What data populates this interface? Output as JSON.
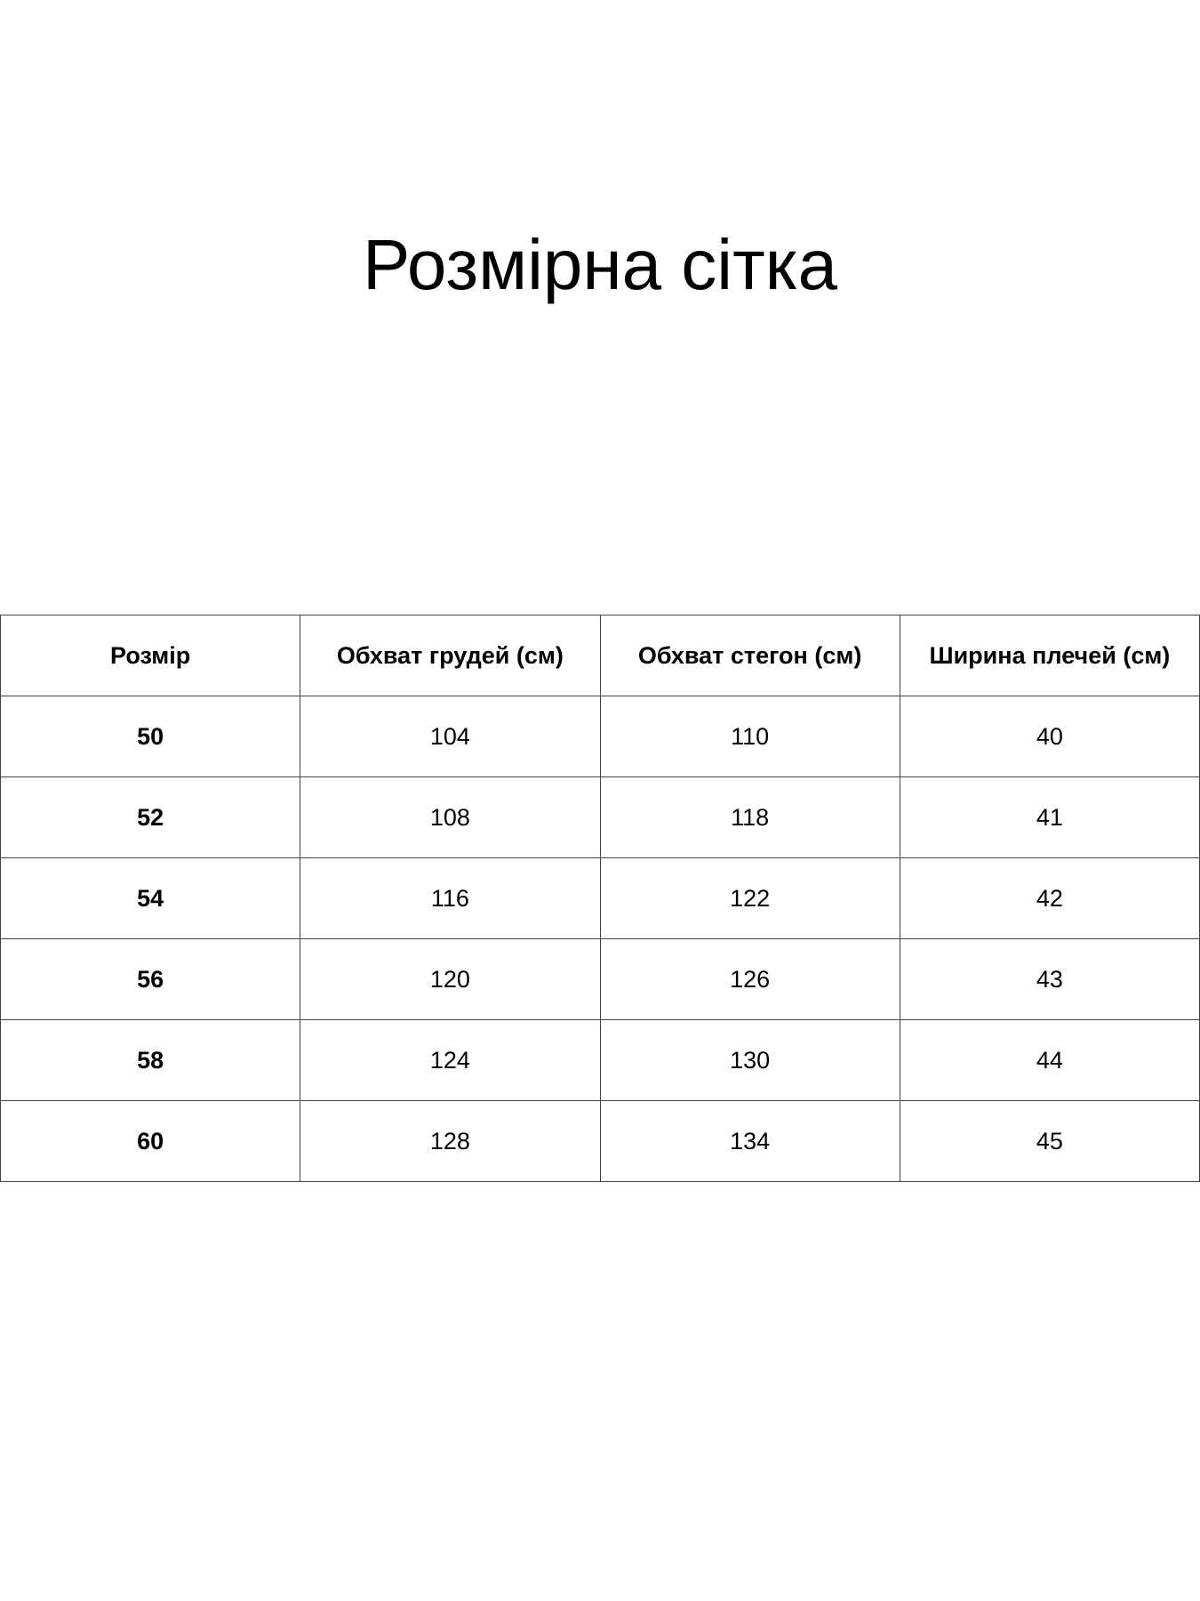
{
  "title": "Розмірна сітка",
  "table": {
    "headers": [
      "Розмір",
      "Обхват грудей (см)",
      "Обхват стегон (см)",
      "Ширина плечей (см)"
    ],
    "rows": [
      [
        "50",
        "104",
        "110",
        "40"
      ],
      [
        "52",
        "108",
        "118",
        "41"
      ],
      [
        "54",
        "116",
        "122",
        "42"
      ],
      [
        "56",
        "120",
        "126",
        "43"
      ],
      [
        "58",
        "124",
        "130",
        "44"
      ],
      [
        "60",
        "128",
        "134",
        "45"
      ]
    ]
  }
}
